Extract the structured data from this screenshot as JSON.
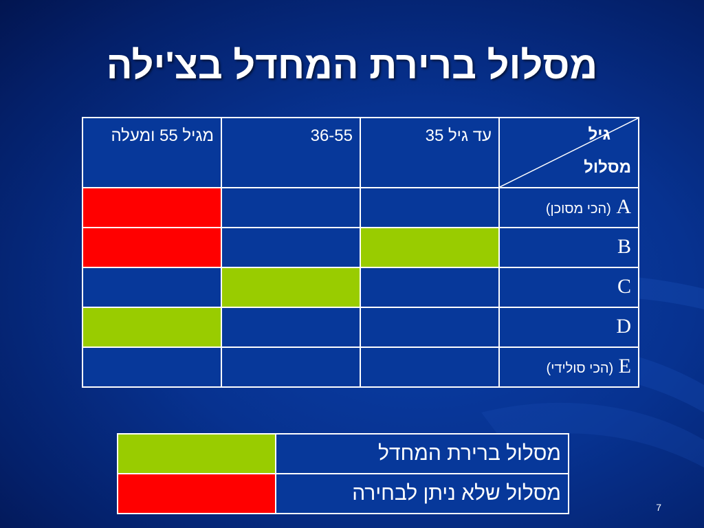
{
  "slide": {
    "title": "מסלול ברירת המחדל בצ'ילה",
    "page_number": "7"
  },
  "colors": {
    "background": "#07389a",
    "default_route": "#99cc00",
    "not_selectable": "#ff0000"
  },
  "table": {
    "corner": {
      "age_label": "גיל",
      "track_label": "מסלול"
    },
    "columns": [
      "עד גיל 35",
      "36-55",
      "מגיל 55 ומעלה"
    ],
    "rows": [
      {
        "letter": "A",
        "note": "(הכי מסוכן)",
        "cells": [
          "none",
          "none",
          "red"
        ]
      },
      {
        "letter": "B",
        "note": "",
        "cells": [
          "green",
          "none",
          "red"
        ]
      },
      {
        "letter": "C",
        "note": "",
        "cells": [
          "none",
          "green",
          "none"
        ]
      },
      {
        "letter": "D",
        "note": "",
        "cells": [
          "none",
          "none",
          "green"
        ]
      },
      {
        "letter": "E",
        "note": "(הכי סולידי)",
        "cells": [
          "none",
          "none",
          "none"
        ]
      }
    ]
  },
  "legend": [
    {
      "label": "מסלול ברירת המחדל",
      "color": "green"
    },
    {
      "label": "מסלול שלא ניתן לבחירה",
      "color": "red"
    }
  ]
}
